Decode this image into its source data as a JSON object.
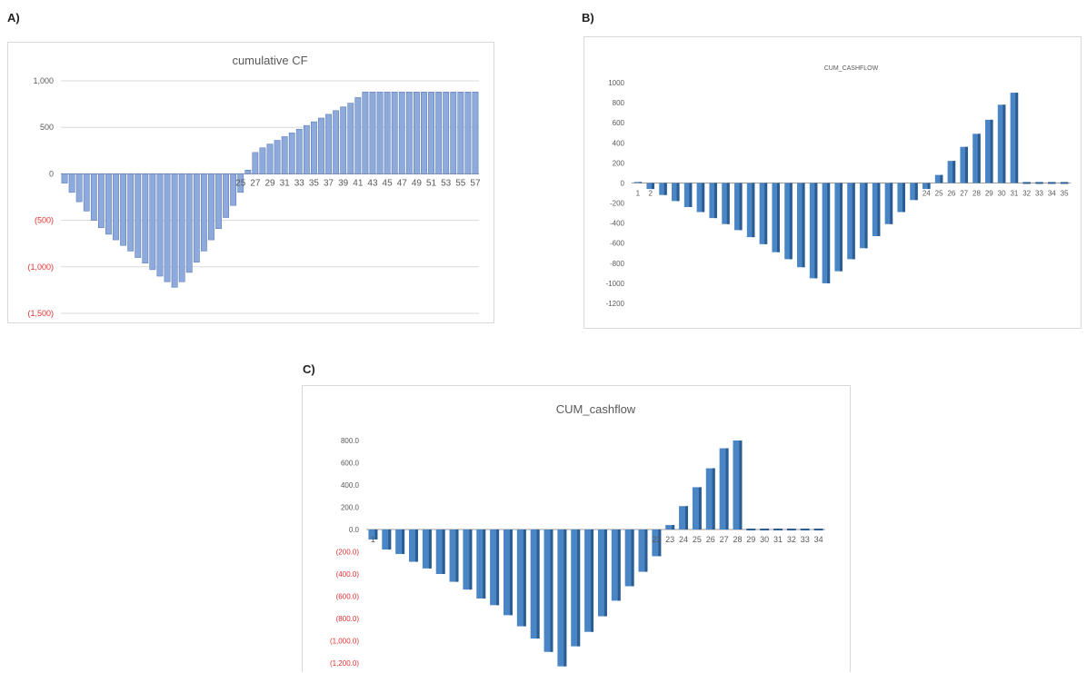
{
  "panels": {
    "a": {
      "label": "A)"
    },
    "b": {
      "label": "B)"
    },
    "c": {
      "label": "C)"
    }
  },
  "colors": {
    "bar_a": "#8eaadb",
    "bar_a_edge": "#4f71b5",
    "bar_bc": "#4a86c5",
    "bar_bc_dark": "#2c5d92",
    "negative_tick": "#e03030",
    "grid": "#d9d9d9",
    "axis_text": "#595959"
  },
  "chart_data": [
    {
      "id": "a",
      "type": "bar",
      "title": "cumulative  CF",
      "xlabel": "",
      "ylabel": "",
      "ylim": [
        -1500,
        1000
      ],
      "yticks": [
        1000,
        500,
        0,
        -500,
        -1000,
        -1500
      ],
      "ytick_labels": [
        "1,000",
        "500",
        "0",
        "(500)",
        "(1,000)",
        "(1,500)"
      ],
      "grid": true,
      "x": [
        1,
        2,
        3,
        4,
        5,
        6,
        7,
        8,
        9,
        10,
        11,
        12,
        13,
        14,
        15,
        16,
        17,
        18,
        19,
        20,
        21,
        22,
        23,
        24,
        25,
        26,
        27,
        28,
        29,
        30,
        31,
        32,
        33,
        34,
        35,
        36,
        37,
        38,
        39,
        40,
        41,
        42,
        43,
        44,
        45,
        46,
        47,
        48,
        49,
        50,
        51,
        52,
        53,
        54,
        55,
        56,
        57
      ],
      "xtick_labels": [
        "25",
        "27",
        "29",
        "31",
        "33",
        "35",
        "37",
        "39",
        "41",
        "43",
        "45",
        "47",
        "49",
        "51",
        "53",
        "55",
        "57"
      ],
      "values": [
        -100,
        -200,
        -300,
        -400,
        -500,
        -580,
        -650,
        -710,
        -770,
        -830,
        -900,
        -960,
        -1030,
        -1100,
        -1160,
        -1220,
        -1160,
        -1060,
        -950,
        -830,
        -710,
        -590,
        -470,
        -340,
        -200,
        40,
        230,
        280,
        320,
        360,
        400,
        440,
        480,
        520,
        560,
        600,
        640,
        680,
        720,
        760,
        820,
        880,
        880,
        880,
        880,
        880,
        880,
        880,
        880,
        880,
        880,
        880,
        880,
        880,
        880,
        880,
        880
      ]
    },
    {
      "id": "b",
      "type": "bar",
      "title": "CUM_CASHFLOW",
      "xlabel": "",
      "ylabel": "",
      "ylim": [
        -1200,
        1000
      ],
      "yticks": [
        1000,
        800,
        600,
        400,
        200,
        0,
        -200,
        -400,
        -600,
        -800,
        -1000,
        -1200
      ],
      "ytick_labels": [
        "1000",
        "800",
        "600",
        "400",
        "200",
        "0",
        "-200",
        "-400",
        "-600",
        "-800",
        "-1000",
        "-1200"
      ],
      "grid": false,
      "x": [
        1,
        2,
        3,
        4,
        5,
        6,
        7,
        8,
        9,
        10,
        11,
        12,
        13,
        14,
        15,
        16,
        17,
        18,
        19,
        20,
        21,
        22,
        23,
        24,
        25,
        26,
        27,
        28,
        29,
        30,
        31,
        32,
        33,
        34,
        35
      ],
      "xtick_labels": [
        "1",
        "2",
        "24",
        "25",
        "26",
        "27",
        "28",
        "29",
        "30",
        "31",
        "32",
        "33",
        "34",
        "35"
      ],
      "values": [
        10,
        -60,
        -120,
        -180,
        -240,
        -290,
        -350,
        -410,
        -470,
        -540,
        -610,
        -690,
        -760,
        -840,
        -950,
        -1000,
        -880,
        -760,
        -650,
        -530,
        -410,
        -290,
        -170,
        -60,
        80,
        220,
        360,
        490,
        630,
        780,
        900,
        0,
        0,
        0,
        0
      ]
    },
    {
      "id": "c",
      "type": "bar",
      "title": "CUM_cashflow",
      "xlabel": "",
      "ylabel": "",
      "ylim": [
        -1200,
        800
      ],
      "yticks": [
        800,
        600,
        400,
        200,
        0,
        -200,
        -400,
        -600,
        -800,
        -1000,
        -1200
      ],
      "ytick_labels": [
        "800.0",
        "600.0",
        "400.0",
        "200.0",
        "0.0",
        "(200.0)",
        "(400.0)",
        "(600.0)",
        "(800.0)",
        "(1,000.0)",
        "(1,200.0)"
      ],
      "grid": false,
      "x": [
        1,
        2,
        3,
        4,
        5,
        6,
        7,
        8,
        9,
        10,
        11,
        12,
        13,
        14,
        15,
        16,
        17,
        18,
        19,
        20,
        21,
        22,
        23,
        24,
        25,
        26,
        27,
        28,
        29,
        30,
        31,
        32,
        33,
        34
      ],
      "xtick_labels": [
        "1",
        "22",
        "23",
        "24",
        "25",
        "26",
        "27",
        "28",
        "29",
        "30",
        "31",
        "32",
        "33",
        "34"
      ],
      "values": [
        -90,
        -180,
        -220,
        -290,
        -350,
        -400,
        -470,
        -540,
        -620,
        -680,
        -770,
        -870,
        -980,
        -1100,
        -1230,
        -1050,
        -920,
        -780,
        -640,
        -510,
        -380,
        -240,
        40,
        210,
        380,
        550,
        730,
        800,
        0,
        0,
        0,
        0,
        0,
        0
      ]
    }
  ]
}
